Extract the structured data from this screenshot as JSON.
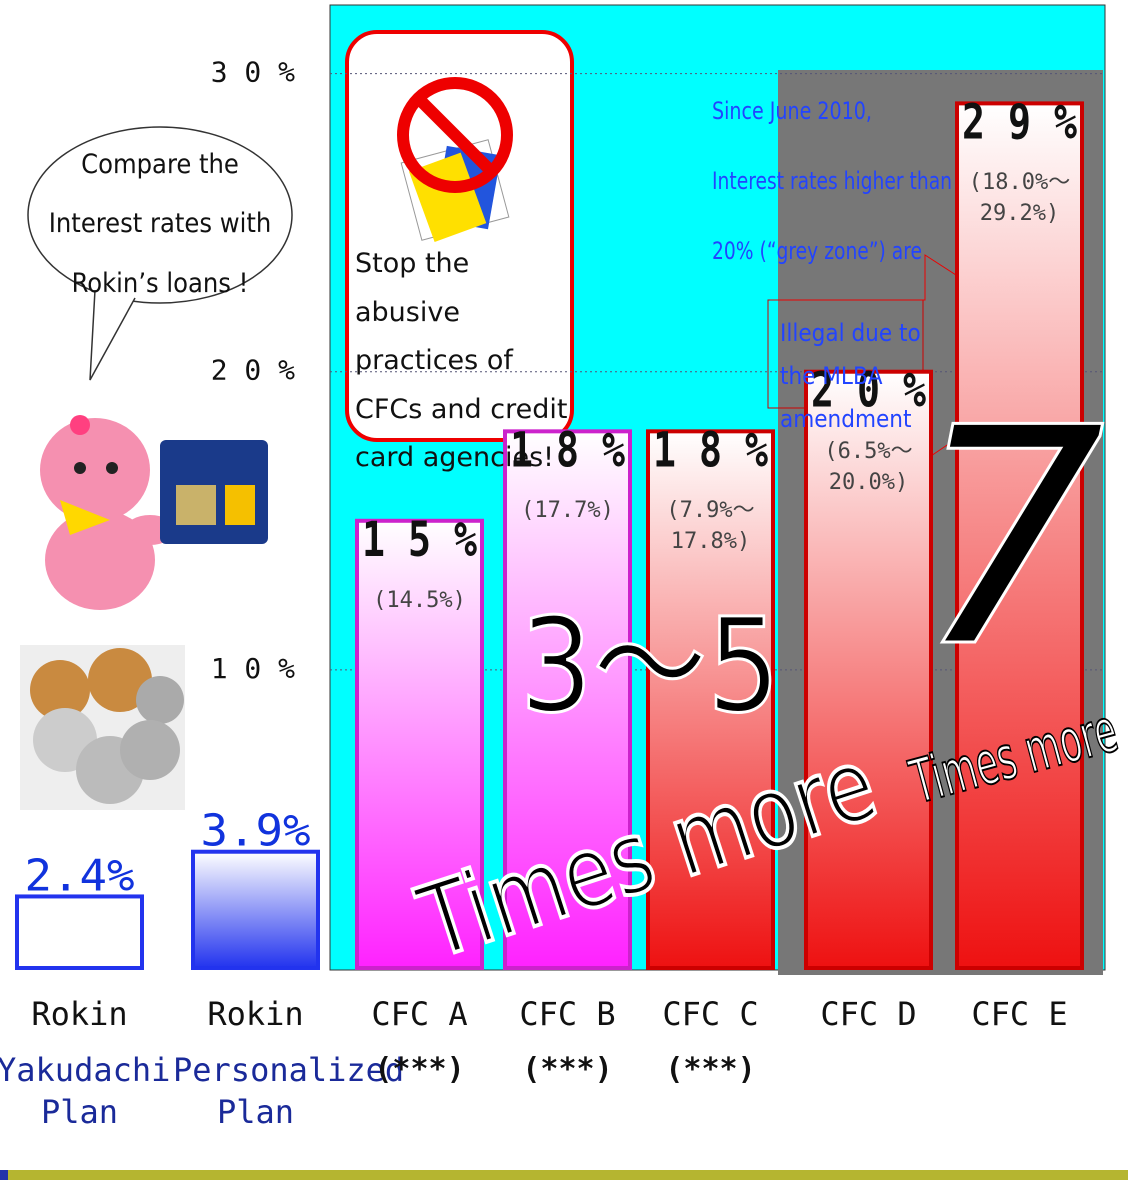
{
  "chart_data": {
    "type": "bar",
    "categories": [
      "Rokin",
      "Rokin",
      "CFC A",
      "CFC B",
      "CFC C",
      "CFC D",
      "CFC E"
    ],
    "sublabels": [
      "Yakudachi Plan",
      "Personalized Plan",
      "(***)",
      "(***)",
      "(***)",
      null,
      null
    ],
    "values": [
      2.4,
      3.9,
      15,
      18,
      18,
      20,
      29
    ],
    "value_labels": [
      "2.4%",
      "3.9%",
      "1 5 %",
      "1 8 %",
      "1 8 %",
      "2 0 %",
      "2 9 %"
    ],
    "range_labels": [
      null,
      null,
      "(14.5%)",
      "(17.7%)",
      "(7.9%～17.8%)",
      "(6.5%～20.0%)",
      "(18.0%～29.2%)"
    ],
    "colors": [
      "#ffffff",
      "#2233ee",
      "#ff22ff",
      "#ff22ff",
      "#ee1111",
      "#ee1111",
      "#ee1111"
    ],
    "borders": [
      "#2233ee",
      "#2233ee",
      "#cc22cc",
      "#cc22cc",
      "#cc0000",
      "#cc0000",
      "#cc0000"
    ],
    "ylim": [
      0,
      32.3
    ],
    "yticks": [
      {
        "value": 10,
        "label": "1 0 %"
      },
      {
        "value": 20,
        "label": "2 0 %"
      },
      {
        "value": 30,
        "label": "3 0 %"
      }
    ],
    "grid": true,
    "speech_bubble": "Compare the Interest rates with Rokin’s loans !",
    "stop_note": "Stop the abusive practices of CFCs and credit card agencies!",
    "grey_zone_note": [
      "Since June 2010,",
      "Interest rates higher than",
      "20% (“grey zone”) are"
    ],
    "illegal_note": "Illegal due to the MLBA amendment",
    "multiplier_mid": "3～5",
    "multiplier_high": "7",
    "times_more": "Times more"
  }
}
